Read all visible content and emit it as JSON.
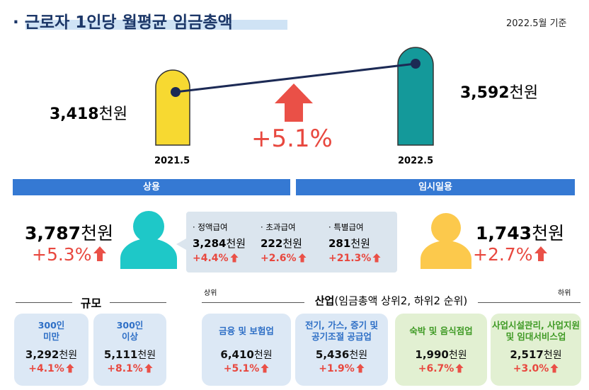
{
  "header": {
    "title": "근로자 1인당 월평균 임금총액",
    "note": "2022.5월 기준"
  },
  "overall": {
    "previous": {
      "value": "3,418",
      "unit": "천원",
      "period": "2021.5"
    },
    "current": {
      "value": "3,592",
      "unit": "천원",
      "period": "2022.5"
    },
    "change": "+5.1%"
  },
  "regular": {
    "label": "상용",
    "value": "3,787",
    "unit": "천원",
    "change": "+5.3%",
    "components": [
      {
        "name": "정액급여",
        "value": "3,284",
        "unit": "천원",
        "change": "+4.4%"
      },
      {
        "name": "초과급여",
        "value": "222",
        "unit": "천원",
        "change": "+2.6%"
      },
      {
        "name": "특별급여",
        "value": "281",
        "unit": "천원",
        "change": "+21.3%"
      }
    ]
  },
  "temporary": {
    "label": "임시일용",
    "value": "1,743",
    "unit": "천원",
    "change": "+2.7%"
  },
  "size": {
    "title": "규모",
    "items": [
      {
        "name": "300인\n미만",
        "value": "3,292",
        "unit": "천원",
        "change": "+4.1%"
      },
      {
        "name": "300인\n이상",
        "value": "5,111",
        "unit": "천원",
        "change": "+8.1%"
      }
    ]
  },
  "industry": {
    "title": "산업",
    "subtitle": "(임금총액 상위2, 하위2 순위)",
    "top_label": "상위",
    "bottom_label": "하위",
    "items": [
      {
        "name": "금융 및 보험업",
        "value": "6,410",
        "unit": "천원",
        "change": "+5.1%"
      },
      {
        "name": "전기, 가스, 증기 및\n공기조절 공급업",
        "value": "5,436",
        "unit": "천원",
        "change": "+1.9%"
      },
      {
        "name": "숙박 및 음식점업",
        "value": "1,990",
        "unit": "천원",
        "change": "+6.7%"
      },
      {
        "name": "사업시설관리, 사업지원\n및 임대서비스업",
        "value": "2,517",
        "unit": "천원",
        "change": "+3.0%"
      }
    ]
  }
}
